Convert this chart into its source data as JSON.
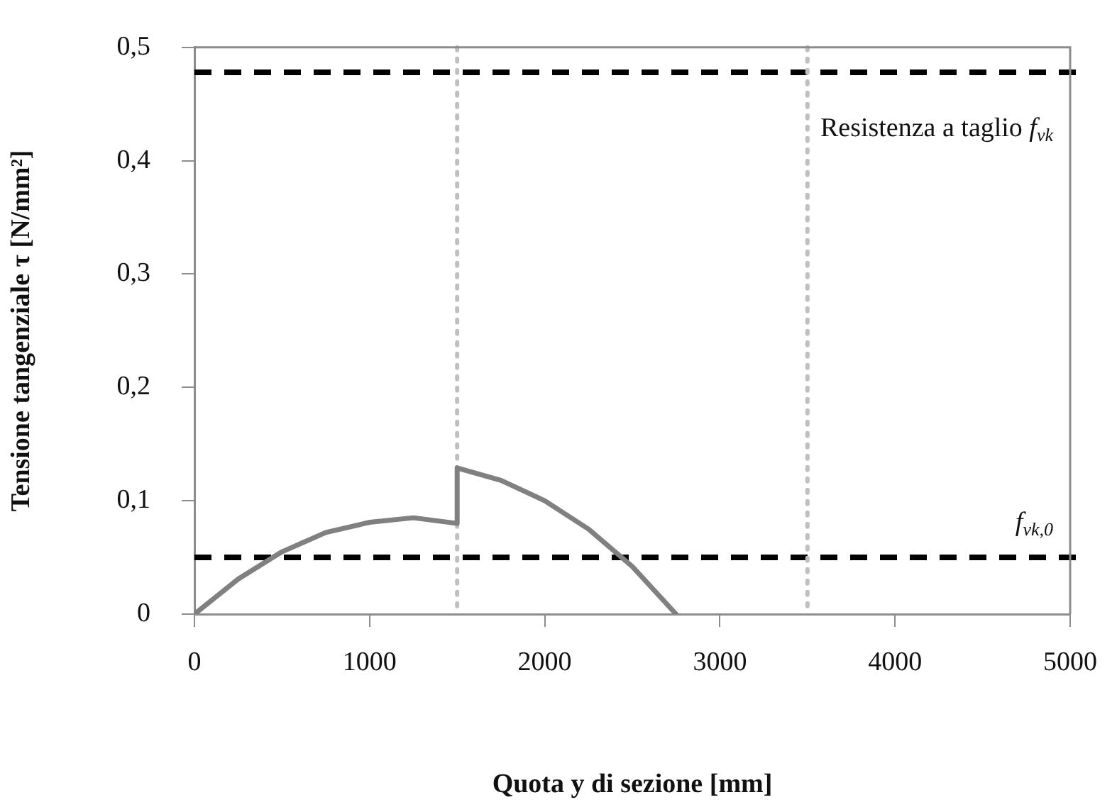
{
  "chart_data": {
    "type": "line",
    "xlabel": "Quota y di sezione [mm]",
    "ylabel": "Tensione tangenziale τ [N/mm²]",
    "x": [
      0,
      250,
      500,
      750,
      1000,
      1250,
      1500,
      1500,
      1750,
      2000,
      2250,
      2500,
      2750
    ],
    "series": [
      {
        "color": "#808080",
        "values": [
          0,
          0.031,
          0.055,
          0.072,
          0.081,
          0.085,
          0.08,
          0.129,
          0.118,
          0.1,
          0.075,
          0.042,
          0
        ]
      }
    ],
    "xlim": [
      0,
      5000
    ],
    "xticks": [
      0,
      1000,
      2000,
      3000,
      4000,
      5000
    ],
    "ylim": [
      0,
      0.5
    ],
    "yticks": [
      0,
      {
        "value": 0.1,
        "label": "0,1"
      },
      {
        "value": 0.2,
        "label": "0,2"
      },
      {
        "value": 0.3,
        "label": "0,3"
      },
      {
        "value": 0.4,
        "label": "0,4"
      },
      {
        "value": 0.5,
        "label": "0,5"
      }
    ],
    "marker": "none",
    "line_style": "solid",
    "legend": false,
    "ref_lines": [
      {
        "axis": "y",
        "value": 0.478,
        "color": "#000000",
        "line_style": "dashed",
        "label": "Resistenza a taglio f$_{vk}$"
      },
      {
        "axis": "y",
        "value": 0.05,
        "color": "#000000",
        "line_style": "dashed",
        "label": "f$_{vk,0}$"
      },
      {
        "axis": "x",
        "value": 1500,
        "color": "#c0c0c0",
        "line_style": "dotted"
      },
      {
        "axis": "x",
        "value": 3500,
        "color": "#c0c0c0",
        "line_style": "dotted"
      }
    ]
  }
}
